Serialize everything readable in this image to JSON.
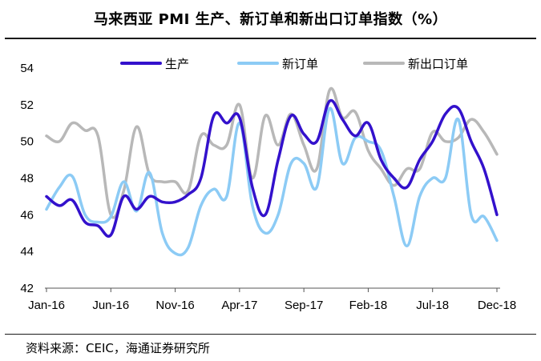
{
  "title": "马来西亚 PMI 生产、新订单和新出口订单指数（%）",
  "source": "资料来源：CEIC，海通证券研究所",
  "chart_data": {
    "type": "line",
    "title": "马来西亚 PMI 生产、新订单和新出口订单指数（%）",
    "xlabel": "",
    "ylabel": "",
    "ylim": [
      42,
      54
    ],
    "yticks": [
      42,
      44,
      46,
      48,
      50,
      52,
      54
    ],
    "x_tick_labels": [
      "Jan-16",
      "Jun-16",
      "Nov-16",
      "Apr-17",
      "Sep-17",
      "Feb-18",
      "Jul-18",
      "Dec-18"
    ],
    "grid": false,
    "legend_position": "top",
    "x": [
      "Jan-16",
      "Feb-16",
      "Mar-16",
      "Apr-16",
      "May-16",
      "Jun-16",
      "Jul-16",
      "Aug-16",
      "Sep-16",
      "Oct-16",
      "Nov-16",
      "Dec-16",
      "Jan-17",
      "Feb-17",
      "Mar-17",
      "Apr-17",
      "May-17",
      "Jun-17",
      "Jul-17",
      "Aug-17",
      "Sep-17",
      "Oct-17",
      "Nov-17",
      "Dec-17",
      "Jan-18",
      "Feb-18",
      "Mar-18",
      "Apr-18",
      "May-18",
      "Jun-18",
      "Jul-18",
      "Aug-18",
      "Sep-18",
      "Oct-18",
      "Nov-18",
      "Dec-18"
    ],
    "series": [
      {
        "name": "生产",
        "color": "#3311cc",
        "width": 3.5,
        "values": [
          47.0,
          46.5,
          46.8,
          45.6,
          45.4,
          44.9,
          47.0,
          46.3,
          47.0,
          46.7,
          46.7,
          47.1,
          48.0,
          51.4,
          51.0,
          51.3,
          47.5,
          46.0,
          49.0,
          51.4,
          50.4,
          50.0,
          52.2,
          51.2,
          50.3,
          51.0,
          49.0,
          48.0,
          47.5,
          49.0,
          50.0,
          51.5,
          51.8,
          50.0,
          48.5,
          46.0
        ]
      },
      {
        "name": "新订单",
        "color": "#8ccbf5",
        "width": 3.5,
        "values": [
          46.3,
          47.5,
          48.1,
          46.0,
          45.6,
          45.9,
          47.8,
          46.2,
          48.3,
          45.0,
          43.9,
          44.2,
          46.5,
          47.4,
          47.0,
          51.0,
          46.5,
          45.0,
          46.0,
          48.8,
          48.8,
          47.5,
          51.8,
          48.8,
          50.2,
          50.0,
          49.5,
          47.0,
          44.3,
          47.0,
          48.0,
          48.0,
          51.2,
          46.0,
          45.9,
          44.6
        ]
      },
      {
        "name": "新出口订单",
        "color": "#b8b8b8",
        "width": 3.5,
        "values": [
          50.3,
          50.0,
          51.0,
          50.6,
          50.3,
          46.0,
          47.3,
          50.8,
          48.2,
          47.8,
          47.8,
          47.3,
          50.3,
          49.8,
          49.8,
          52.0,
          48.0,
          51.4,
          49.8,
          51.5,
          49.8,
          48.5,
          52.8,
          51.3,
          51.6,
          49.5,
          48.5,
          47.6,
          48.5,
          48.5,
          50.5,
          50.0,
          50.2,
          51.2,
          50.5,
          49.3
        ]
      }
    ]
  }
}
